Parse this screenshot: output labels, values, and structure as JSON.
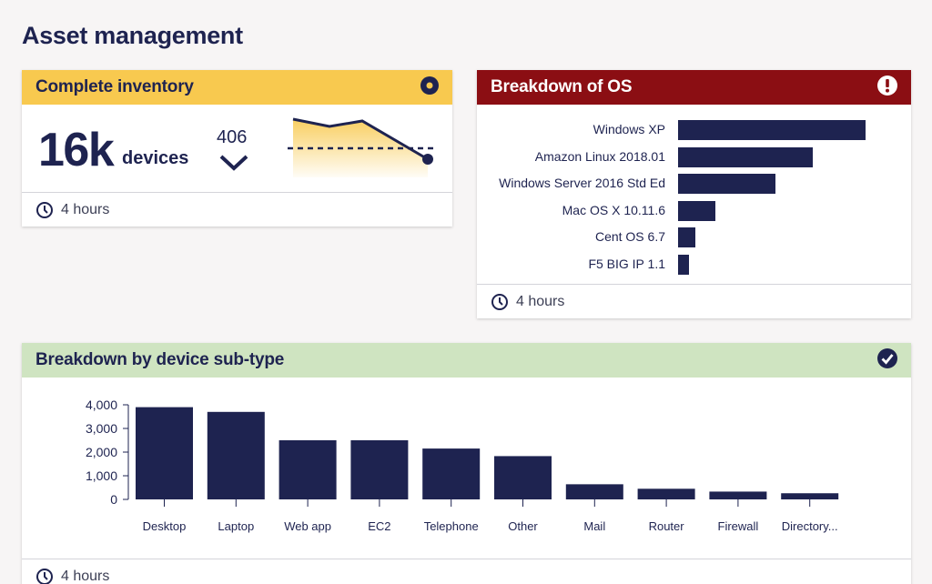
{
  "page": {
    "title": "Asset management"
  },
  "inventory": {
    "title": "Complete inventory",
    "header_icon": "target-icon",
    "count": "16k",
    "unit": "devices",
    "delta": "406",
    "delta_direction": "down",
    "footer": "4 hours",
    "color": "#f8c94f"
  },
  "os": {
    "title": "Breakdown of OS",
    "header_icon": "alert-icon",
    "footer": "4 hours",
    "color": "#8b0e13",
    "items": [
      {
        "label": "Windows XP",
        "value": 1.0
      },
      {
        "label": "Amazon Linux  2018.01",
        "value": 0.72
      },
      {
        "label": "Windows Server 2016 Std Ed",
        "value": 0.52
      },
      {
        "label": "Mac OS X 10.11.6",
        "value": 0.2
      },
      {
        "label": "Cent OS 6.7",
        "value": 0.09
      },
      {
        "label": "F5 BIG IP 1.1",
        "value": 0.06
      }
    ]
  },
  "subtype": {
    "title": "Breakdown by device sub-type",
    "header_icon": "check-circle-icon",
    "footer": "4 hours",
    "color": "#cfe4c1"
  },
  "chart_data": {
    "type": "bar",
    "categories": [
      "Desktop",
      "Laptop",
      "Web app",
      "EC2",
      "Telephone",
      "Other",
      "Mail",
      "Router",
      "Firewall",
      "Directory..."
    ],
    "values": [
      3900,
      3700,
      2500,
      2500,
      2150,
      1830,
      640,
      450,
      330,
      260
    ],
    "yticks": [
      "4,000",
      "3,000",
      "2,000",
      "1,000",
      "0"
    ],
    "ylim": [
      0,
      4000
    ],
    "title": "",
    "xlabel": "",
    "ylabel": "",
    "bar_color": "#1e2350"
  }
}
